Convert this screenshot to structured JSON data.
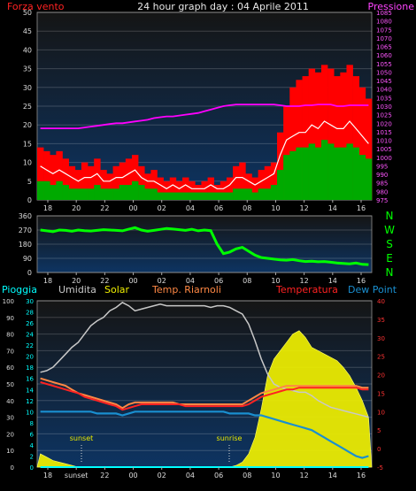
{
  "colors": {
    "wind_gust": "#ff0000",
    "wind_avg": "#00aa00",
    "wind_line": "#ffffff",
    "pressure": "#ff00ff",
    "direction": "#00ff00",
    "humidity": "#c8c8c8",
    "solar": "#f0f000",
    "temp_riarnoli": "#ff8844",
    "temperature": "#ff2222",
    "dew_point": "#1a8fd0",
    "rain": "#00ffff"
  },
  "chart_data": [
    {
      "type": "bar",
      "title": "24 hour graph day : 04 Aprile 2011",
      "left_label": "Forza vento",
      "right_label": "Pressione",
      "x_ticks": [
        "18",
        "20",
        "22",
        "00",
        "02",
        "04",
        "06",
        "08",
        "10",
        "12",
        "14",
        "16"
      ],
      "ylim_left": [
        0,
        50
      ],
      "y_ticks_left": [
        0,
        5,
        10,
        15,
        20,
        25,
        30,
        35,
        40,
        45,
        50
      ],
      "ylim_right": [
        975,
        1085
      ],
      "y_ticks_right": [
        975,
        980,
        985,
        990,
        995,
        1000,
        1005,
        1010,
        1015,
        1020,
        1025,
        1030,
        1035,
        1040,
        1045,
        1050,
        1055,
        1060,
        1065,
        1070,
        1075,
        1080,
        1085
      ],
      "grid": true,
      "series": [
        {
          "name": "gust",
          "values": [
            14,
            13,
            12,
            13,
            11,
            9,
            8,
            10,
            9,
            11,
            8,
            7,
            9,
            10,
            11,
            12,
            9,
            7,
            8,
            6,
            5,
            6,
            5,
            6,
            5,
            4,
            5,
            6,
            4,
            5,
            6,
            9,
            10,
            7,
            6,
            8,
            9,
            10,
            18,
            25,
            30,
            32,
            33,
            35,
            34,
            36,
            35,
            33,
            34,
            36,
            33,
            30,
            27
          ]
        },
        {
          "name": "avg",
          "values": [
            5,
            5,
            4,
            5,
            4,
            3,
            3,
            3,
            3,
            4,
            3,
            3,
            3,
            4,
            4,
            5,
            4,
            3,
            3,
            2,
            2,
            2,
            2,
            2,
            2,
            2,
            2,
            2,
            2,
            2,
            2,
            3,
            3,
            3,
            2,
            3,
            3,
            4,
            8,
            12,
            13,
            14,
            14,
            15,
            14,
            16,
            15,
            14,
            14,
            15,
            14,
            12,
            11
          ]
        },
        {
          "name": "line",
          "values": [
            9,
            8,
            7,
            8,
            7,
            6,
            5,
            6,
            6,
            7,
            5,
            5,
            6,
            6,
            7,
            8,
            6,
            5,
            5,
            4,
            3,
            4,
            3,
            4,
            3,
            3,
            3,
            4,
            3,
            3,
            4,
            6,
            6,
            5,
            4,
            5,
            6,
            7,
            12,
            16,
            17,
            18,
            18,
            20,
            19,
            21,
            20,
            19,
            19,
            21,
            19,
            17,
            15
          ]
        },
        {
          "name": "Pressione",
          "values": [
            1017,
            1017,
            1017,
            1017,
            1017,
            1017,
            1017,
            1017.5,
            1018,
            1018.5,
            1019,
            1019.5,
            1020,
            1020,
            1020.5,
            1021,
            1021.5,
            1022,
            1023,
            1023.5,
            1024,
            1024,
            1024.5,
            1025,
            1025.5,
            1026,
            1027,
            1028,
            1029,
            1030,
            1030.5,
            1031,
            1031,
            1031,
            1031,
            1031,
            1031,
            1031,
            1030.5,
            1030,
            1030,
            1030,
            1030.5,
            1030.5,
            1031,
            1031,
            1031,
            1030,
            1030,
            1030.5,
            1030.5,
            1030.5,
            1030.5
          ]
        }
      ]
    },
    {
      "type": "line",
      "x_ticks": [
        "18",
        "20",
        "22",
        "00",
        "02",
        "04",
        "06",
        "08",
        "10",
        "12",
        "14",
        "16"
      ],
      "ylim": [
        0,
        360
      ],
      "y_ticks": [
        0,
        90,
        180,
        270,
        360
      ],
      "direction_labels": [
        "N",
        "W",
        "S",
        "E",
        "N"
      ],
      "grid": true,
      "series": [
        {
          "name": "direction",
          "values": [
            270,
            265,
            260,
            270,
            268,
            262,
            270,
            266,
            264,
            268,
            272,
            270,
            268,
            265,
            275,
            285,
            270,
            262,
            268,
            274,
            280,
            276,
            272,
            268,
            275,
            265,
            270,
            266,
            180,
            120,
            130,
            150,
            160,
            135,
            110,
            95,
            90,
            85,
            80,
            78,
            82,
            75,
            70,
            72,
            68,
            70,
            65,
            60,
            58,
            55,
            60,
            52,
            50
          ]
        }
      ]
    },
    {
      "type": "line",
      "legend": [
        "Pioggia",
        "Umidita",
        "Solar",
        "Temp. Riarnoli",
        "Temperatura",
        "Dew Point"
      ],
      "x_ticks": [
        "18",
        "sunset",
        "22",
        "00",
        "02",
        "04",
        "06",
        "08",
        "10",
        "12",
        "14",
        "16"
      ],
      "annotations": [
        "sunset",
        "sunrise"
      ],
      "ylim_left_outer": [
        0,
        100
      ],
      "y_ticks_left_outer": [
        0,
        10,
        20,
        30,
        40,
        50,
        60,
        70,
        80,
        90,
        100
      ],
      "ylim_left_inner": [
        0,
        30
      ],
      "y_ticks_left_inner": [
        0,
        2,
        4,
        6,
        8,
        10,
        12,
        14,
        16,
        18,
        20,
        22,
        24,
        26,
        28,
        30
      ],
      "ylim_right": [
        -5,
        40
      ],
      "y_ticks_right": [
        -5,
        0,
        5,
        10,
        15,
        20,
        25,
        30,
        35,
        40
      ],
      "grid": true,
      "series": [
        {
          "name": "Umidita",
          "values": [
            57,
            58,
            60,
            64,
            68,
            72,
            75,
            80,
            85,
            88,
            90,
            94,
            96,
            99,
            97,
            94,
            95,
            96,
            97,
            98,
            97,
            97,
            97,
            97,
            97,
            97,
            97,
            96,
            97,
            97,
            96,
            94,
            92,
            86,
            76,
            65,
            56,
            50,
            48,
            47,
            46,
            45,
            45,
            43,
            40,
            38,
            36,
            35,
            34,
            33,
            32,
            31,
            30
          ]
        },
        {
          "name": "Solar",
          "values": [
            8,
            6,
            4,
            3,
            2,
            1,
            0,
            0,
            0,
            0,
            0,
            0,
            0,
            0,
            0,
            0,
            0,
            0,
            0,
            0,
            0,
            0,
            0,
            0,
            0,
            0,
            0,
            0,
            0,
            0,
            0,
            1,
            3,
            8,
            18,
            35,
            55,
            65,
            70,
            75,
            80,
            82,
            78,
            72,
            70,
            68,
            66,
            64,
            60,
            55,
            48,
            40,
            30
          ]
        },
        {
          "name": "Temp. Riarnoli",
          "values": [
            19,
            18.5,
            18,
            17.5,
            17,
            16,
            15,
            14.5,
            14,
            13.5,
            13,
            12.5,
            12,
            11,
            12,
            12.5,
            12.5,
            12.5,
            12.5,
            12.5,
            12.5,
            12.5,
            12,
            12,
            12,
            12,
            12,
            12,
            12,
            12,
            12,
            12,
            12,
            13,
            14,
            15,
            15.5,
            16,
            16.5,
            17,
            17,
            17,
            17,
            17,
            17,
            17,
            17,
            17,
            17,
            17,
            17,
            16.5,
            16.5
          ]
        },
        {
          "name": "Temperatura",
          "values": [
            18,
            17.5,
            17,
            16.5,
            16,
            15.5,
            15,
            14,
            13.5,
            13,
            12.5,
            12,
            11.5,
            10.5,
            11,
            11.5,
            12,
            12,
            12,
            12,
            12,
            12,
            12,
            11.5,
            11.5,
            11.5,
            11.5,
            11.5,
            11.5,
            11.5,
            11.5,
            11.5,
            11.5,
            12,
            13,
            14,
            14.5,
            15,
            15.5,
            16,
            16,
            16.5,
            16.5,
            16.5,
            16.5,
            16.5,
            16.5,
            16.5,
            16.5,
            16.5,
            16.5,
            16,
            16
          ]
        },
        {
          "name": "Dew Point",
          "values": [
            10,
            10,
            10,
            10,
            10,
            10,
            10,
            10,
            10,
            9.5,
            9.5,
            9.5,
            9.5,
            9,
            9.5,
            10,
            10,
            10,
            10,
            10,
            10,
            10,
            10,
            10,
            10,
            10,
            10,
            10,
            10,
            10,
            9.5,
            9.5,
            9.5,
            9.5,
            9,
            9,
            8.5,
            8,
            7.5,
            7,
            6.5,
            6,
            5.5,
            5,
            4,
            3,
            2,
            1,
            0,
            -1,
            -2,
            -2.5,
            -2
          ]
        },
        {
          "name": "Pioggia",
          "values": [
            0,
            0,
            0,
            0,
            0,
            0,
            0,
            0,
            0,
            0,
            0,
            0,
            0,
            0,
            0,
            0,
            0,
            0,
            0,
            0,
            0,
            0,
            0,
            0,
            0,
            0,
            0,
            0,
            0,
            0,
            0,
            0,
            0,
            0,
            0,
            0,
            0,
            0,
            0,
            0,
            0,
            0,
            0,
            0,
            0,
            0,
            0,
            0,
            0,
            0,
            0,
            0,
            0
          ]
        }
      ]
    }
  ]
}
